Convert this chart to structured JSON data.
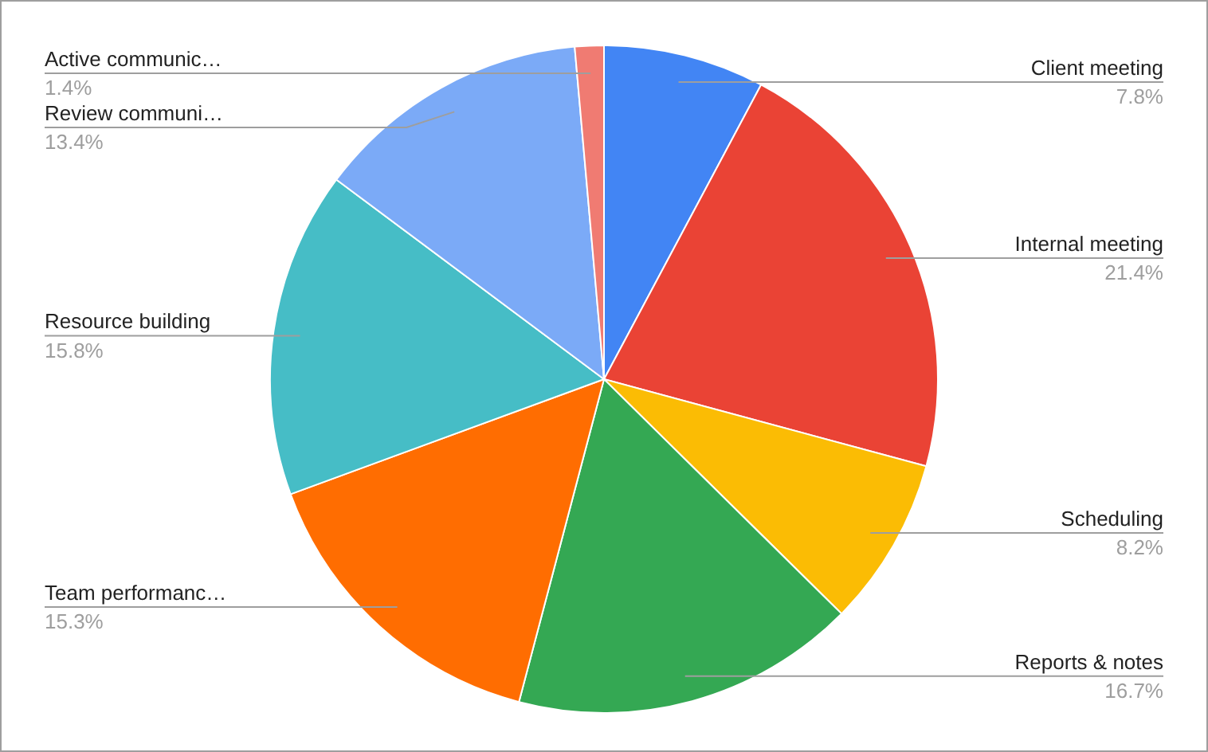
{
  "chart_data": {
    "type": "pie",
    "categories": [
      "Client meeting",
      "Internal meeting",
      "Scheduling",
      "Reports & notes",
      "Team performanc…",
      "Resource building",
      "Review communi…",
      "Active communic…"
    ],
    "values": [
      7.8,
      21.4,
      8.2,
      16.7,
      15.3,
      15.8,
      13.4,
      1.4
    ],
    "value_labels": [
      "7.8%",
      "21.4%",
      "8.2%",
      "16.7%",
      "15.3%",
      "15.8%",
      "13.4%",
      "1.4%"
    ],
    "colors": [
      "#4285f4",
      "#ea4335",
      "#fbbc04",
      "#34a853",
      "#ff6d01",
      "#46bdc6",
      "#7baaf7",
      "#f07b72"
    ],
    "legend": false
  }
}
